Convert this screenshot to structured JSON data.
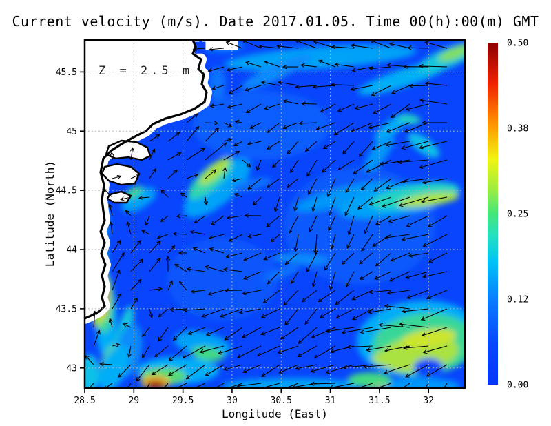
{
  "chart_data": {
    "type": "heatmap",
    "subtype": "ocean-current-vector-field-map",
    "title": "Current velocity (m/s). Date 2017.01.05. Time 00(h):00(m) GMT",
    "date": "2017.01.05",
    "time": "00(h):00(m) GMT",
    "units": "m/s",
    "depth_annotation": "Z = 2.5 m",
    "xlabel": "Longitude (East)",
    "ylabel": "Latitude (North)",
    "xlim": [
      28.5,
      32.37
    ],
    "ylim": [
      42.83,
      45.77
    ],
    "x_ticks": [
      28.5,
      29,
      29.5,
      30,
      30.5,
      31,
      31.5,
      32
    ],
    "x_tick_labels": [
      "28.5",
      "29",
      "29.5",
      "30",
      "30.5",
      "31",
      "31.5",
      "32"
    ],
    "y_ticks": [
      43,
      43.5,
      44,
      44.5,
      45,
      45.5
    ],
    "y_tick_labels": [
      "43",
      "43.5",
      "44",
      "44.5",
      "45",
      "45.5"
    ],
    "grid": true,
    "grid_color": "#b3b3b3",
    "sea_base_speed": 0.05,
    "colorbar": {
      "min": 0.0,
      "max": 0.5,
      "tick_values": [
        0.5,
        0.375,
        0.25,
        0.125,
        0.0
      ],
      "tick_labels": [
        "0.50",
        "0.38",
        "0.25",
        "0.12",
        "0.00"
      ],
      "colormap_stops": [
        [
          0.0,
          [
            5,
            54,
            250
          ]
        ],
        [
          0.06,
          [
            8,
            72,
            252
          ]
        ],
        [
          0.12,
          [
            10,
            120,
            255
          ]
        ],
        [
          0.18,
          [
            0,
            195,
            245
          ]
        ],
        [
          0.22,
          [
            40,
            225,
            190
          ]
        ],
        [
          0.25,
          [
            70,
            230,
            120
          ]
        ],
        [
          0.29,
          [
            165,
            238,
            60
          ]
        ],
        [
          0.33,
          [
            240,
            244,
            18
          ]
        ],
        [
          0.38,
          [
            255,
            150,
            0
          ]
        ],
        [
          0.44,
          [
            240,
            35,
            0
          ]
        ],
        [
          0.5,
          [
            140,
            0,
            0
          ]
        ]
      ]
    },
    "speed_patches_lon_lat_speed_rx_ry_rot": [
      [
        30.3,
        45.05,
        0.09,
        100,
        50,
        0
      ],
      [
        31.3,
        44.2,
        0.085,
        110,
        85,
        0
      ],
      [
        29.9,
        43.75,
        0.08,
        80,
        60,
        0
      ],
      [
        30.9,
        45.62,
        0.16,
        140,
        16,
        -4
      ],
      [
        31.75,
        45.45,
        0.17,
        70,
        13,
        -18
      ],
      [
        30.45,
        45.5,
        0.14,
        55,
        11,
        -25
      ],
      [
        29.9,
        45.72,
        0.13,
        30,
        9,
        0
      ],
      [
        29.85,
        45.4,
        0.12,
        12,
        25,
        0
      ],
      [
        32.2,
        45.62,
        0.2,
        48,
        14,
        -22
      ],
      [
        32.27,
        45.66,
        0.28,
        26,
        8,
        -22
      ],
      [
        31.62,
        45.03,
        0.17,
        30,
        10,
        -38
      ],
      [
        31.95,
        44.88,
        0.19,
        27,
        11,
        35
      ],
      [
        31.8,
        45.1,
        0.22,
        17,
        7,
        8
      ],
      [
        31.5,
        44.82,
        0.15,
        33,
        12,
        -55
      ],
      [
        31.15,
        44.45,
        0.15,
        75,
        13,
        -14
      ],
      [
        31.7,
        44.42,
        0.16,
        90,
        22,
        -10
      ],
      [
        31.85,
        44.45,
        0.22,
        65,
        15,
        -10
      ],
      [
        32.0,
        44.42,
        0.3,
        45,
        9,
        -8
      ],
      [
        29.85,
        44.52,
        0.16,
        60,
        24,
        -40
      ],
      [
        29.78,
        44.6,
        0.23,
        42,
        15,
        -42
      ],
      [
        29.82,
        44.66,
        0.3,
        28,
        9,
        -42
      ],
      [
        29.05,
        44.42,
        0.16,
        28,
        13,
        -30
      ],
      [
        29.0,
        44.48,
        0.24,
        15,
        7,
        -30
      ],
      [
        28.68,
        44.2,
        0.16,
        9,
        32,
        4
      ],
      [
        28.66,
        43.9,
        0.2,
        10,
        38,
        0
      ],
      [
        28.72,
        43.4,
        0.17,
        15,
        55,
        0
      ],
      [
        28.7,
        43.55,
        0.24,
        13,
        44,
        0
      ],
      [
        28.68,
        43.6,
        0.34,
        10,
        34,
        0
      ],
      [
        28.68,
        43.58,
        0.46,
        7,
        20,
        0
      ],
      [
        28.63,
        43.42,
        0.3,
        6,
        14,
        0
      ],
      [
        28.9,
        43.3,
        0.2,
        10,
        40,
        15
      ],
      [
        28.95,
        43.15,
        0.14,
        18,
        40,
        10
      ],
      [
        28.75,
        43.05,
        0.26,
        11,
        27,
        20
      ],
      [
        28.8,
        43.0,
        0.17,
        18,
        36,
        25
      ],
      [
        28.55,
        42.95,
        0.19,
        14,
        28,
        0
      ],
      [
        29.45,
        42.98,
        0.17,
        60,
        20,
        0
      ],
      [
        29.3,
        42.93,
        0.26,
        34,
        13,
        0
      ],
      [
        29.22,
        42.88,
        0.36,
        21,
        10,
        0
      ],
      [
        29.22,
        42.86,
        0.48,
        13,
        6,
        0
      ],
      [
        29.7,
        43.2,
        0.16,
        42,
        18,
        12
      ],
      [
        29.75,
        43.12,
        0.25,
        24,
        10,
        10
      ],
      [
        30.7,
        43.92,
        0.14,
        42,
        8,
        3
      ],
      [
        30.5,
        43.8,
        0.12,
        28,
        7,
        -18
      ],
      [
        30.2,
        44.55,
        0.12,
        30,
        8,
        -12
      ],
      [
        30.6,
        42.85,
        0.16,
        100,
        11,
        0
      ],
      [
        31.9,
        43.25,
        0.17,
        90,
        55,
        -5
      ],
      [
        31.95,
        43.2,
        0.24,
        75,
        45,
        -5
      ],
      [
        31.9,
        43.12,
        0.3,
        58,
        26,
        -8
      ],
      [
        32.0,
        43.25,
        0.32,
        40,
        13,
        -8
      ],
      [
        31.55,
        43.08,
        0.3,
        18,
        10,
        0
      ],
      [
        32.0,
        43.0,
        0.05,
        22,
        14,
        0
      ],
      [
        31.9,
        42.85,
        0.15,
        60,
        12,
        0
      ],
      [
        31.45,
        42.87,
        0.33,
        20,
        8,
        0
      ],
      [
        31.4,
        42.9,
        0.25,
        32,
        11,
        0
      ]
    ],
    "vector_grid": {
      "lons": [
        28.6,
        29.15,
        29.7,
        30.25,
        30.8,
        31.35,
        31.9,
        32.4
      ],
      "lats": [
        45.8,
        45.3,
        44.8,
        44.3,
        43.8,
        43.3,
        42.8
      ],
      "u": [
        [
          -0.03,
          -0.05,
          -0.1,
          -0.14,
          -0.16,
          -0.2,
          -0.22,
          -0.25
        ],
        [
          0.02,
          0.03,
          -0.08,
          -0.12,
          -0.15,
          -0.18,
          -0.15,
          -0.28
        ],
        [
          0.03,
          0.06,
          0.22,
          -0.05,
          -0.08,
          -0.12,
          -0.3,
          -0.25
        ],
        [
          -0.04,
          -0.06,
          -0.08,
          -0.1,
          -0.03,
          -0.05,
          -0.26,
          -0.15
        ],
        [
          0.1,
          0.12,
          -0.12,
          -0.16,
          -0.06,
          -0.1,
          -0.18,
          -0.2
        ],
        [
          0.04,
          -0.05,
          -0.18,
          -0.2,
          -0.15,
          -0.28,
          -0.3,
          -0.22
        ],
        [
          -0.08,
          -0.12,
          -0.2,
          -0.18,
          -0.22,
          -0.25,
          -0.12,
          -0.1
        ]
      ],
      "v": [
        [
          -0.02,
          -0.05,
          0.03,
          0.06,
          0.05,
          0.07,
          0.06,
          0.08
        ],
        [
          0.08,
          0.1,
          -0.08,
          -0.04,
          0.02,
          -0.06,
          -0.1,
          0.1
        ],
        [
          0.04,
          0.06,
          0.16,
          -0.06,
          -0.1,
          -0.12,
          -0.05,
          -0.05
        ],
        [
          0.06,
          -0.02,
          -0.05,
          -0.02,
          -0.15,
          -0.14,
          -0.06,
          -0.1
        ],
        [
          0.22,
          0.1,
          0.06,
          -0.03,
          -0.14,
          -0.1,
          -0.04,
          -0.12
        ],
        [
          0.14,
          -0.1,
          -0.1,
          -0.08,
          -0.12,
          -0.06,
          0.04,
          -0.14
        ],
        [
          -0.05,
          -0.15,
          -0.1,
          -0.06,
          -0.04,
          -0.02,
          -0.16,
          -0.2
        ]
      ]
    },
    "coastline": [
      [
        29.601,
        45.77
      ],
      [
        29.629,
        45.712
      ],
      [
        29.601,
        45.654
      ],
      [
        29.685,
        45.607
      ],
      [
        29.657,
        45.526
      ],
      [
        29.713,
        45.479
      ],
      [
        29.692,
        45.397
      ],
      [
        29.741,
        45.328
      ],
      [
        29.72,
        45.246
      ],
      [
        29.615,
        45.188
      ],
      [
        29.475,
        45.141
      ],
      [
        29.32,
        45.106
      ],
      [
        29.194,
        45.06
      ],
      [
        29.124,
        45.001
      ],
      [
        29.012,
        44.955
      ],
      [
        28.886,
        44.897
      ],
      [
        28.773,
        44.838
      ],
      [
        28.689,
        44.769
      ],
      [
        28.661,
        44.652
      ],
      [
        28.696,
        44.547
      ],
      [
        28.675,
        44.419
      ],
      [
        28.689,
        44.326
      ],
      [
        28.703,
        44.245
      ],
      [
        28.661,
        44.152
      ],
      [
        28.703,
        44.058
      ],
      [
        28.668,
        43.965
      ],
      [
        28.71,
        43.872
      ],
      [
        28.675,
        43.779
      ],
      [
        28.703,
        43.686
      ],
      [
        28.675,
        43.593
      ],
      [
        28.703,
        43.523
      ],
      [
        28.647,
        43.476
      ],
      [
        28.563,
        43.441
      ],
      [
        28.5,
        43.418
      ]
    ],
    "lagoon_lakes": [
      [
        [
          28.745,
          44.873
        ],
        [
          28.872,
          44.92
        ],
        [
          29.026,
          44.908
        ],
        [
          29.138,
          44.862
        ],
        [
          29.166,
          44.792
        ],
        [
          29.082,
          44.757
        ],
        [
          28.942,
          44.78
        ],
        [
          28.815,
          44.769
        ],
        [
          28.717,
          44.804
        ]
      ],
      [
        [
          28.703,
          44.699
        ],
        [
          28.829,
          44.722
        ],
        [
          28.97,
          44.699
        ],
        [
          29.054,
          44.641
        ],
        [
          29.012,
          44.559
        ],
        [
          28.872,
          44.547
        ],
        [
          28.745,
          44.582
        ],
        [
          28.675,
          44.641
        ]
      ],
      [
        [
          28.759,
          44.466
        ],
        [
          28.872,
          44.489
        ],
        [
          28.97,
          44.454
        ],
        [
          28.928,
          44.396
        ],
        [
          28.801,
          44.396
        ],
        [
          28.731,
          44.431
        ]
      ]
    ],
    "delta_inlet_rect": {
      "lon0": 29.62,
      "lon1": 29.73,
      "lat0": 45.655,
      "lat1": 45.755
    }
  }
}
